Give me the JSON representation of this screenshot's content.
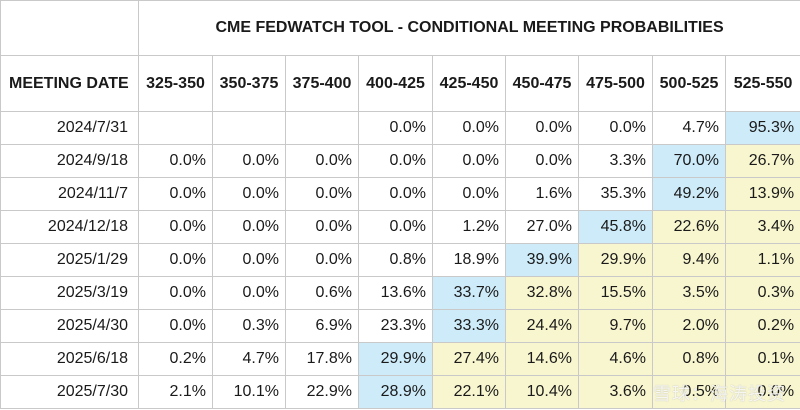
{
  "chart_data": {
    "type": "table",
    "title": "CME FEDWATCH TOOL - CONDITIONAL MEETING PROBABILITIES",
    "row_header_label": "MEETING DATE",
    "columns": [
      "325-350",
      "350-375",
      "375-400",
      "400-425",
      "425-450",
      "450-475",
      "475-500",
      "500-525",
      "525-550"
    ],
    "rows": [
      {
        "date": "2024/7/31",
        "values": [
          "",
          "",
          "",
          "0.0%",
          "0.0%",
          "0.0%",
          "0.0%",
          "4.7%",
          "95.3%"
        ]
      },
      {
        "date": "2024/9/18",
        "values": [
          "0.0%",
          "0.0%",
          "0.0%",
          "0.0%",
          "0.0%",
          "0.0%",
          "3.3%",
          "70.0%",
          "26.7%"
        ]
      },
      {
        "date": "2024/11/7",
        "values": [
          "0.0%",
          "0.0%",
          "0.0%",
          "0.0%",
          "0.0%",
          "1.6%",
          "35.3%",
          "49.2%",
          "13.9%"
        ]
      },
      {
        "date": "2024/12/18",
        "values": [
          "0.0%",
          "0.0%",
          "0.0%",
          "0.0%",
          "1.2%",
          "27.0%",
          "45.8%",
          "22.6%",
          "3.4%"
        ]
      },
      {
        "date": "2025/1/29",
        "values": [
          "0.0%",
          "0.0%",
          "0.0%",
          "0.8%",
          "18.9%",
          "39.9%",
          "29.9%",
          "9.4%",
          "1.1%"
        ]
      },
      {
        "date": "2025/3/19",
        "values": [
          "0.0%",
          "0.0%",
          "0.6%",
          "13.6%",
          "33.7%",
          "32.8%",
          "15.5%",
          "3.5%",
          "0.3%"
        ]
      },
      {
        "date": "2025/4/30",
        "values": [
          "0.0%",
          "0.3%",
          "6.9%",
          "23.3%",
          "33.3%",
          "24.4%",
          "9.7%",
          "2.0%",
          "0.2%"
        ]
      },
      {
        "date": "2025/6/18",
        "values": [
          "0.2%",
          "4.7%",
          "17.8%",
          "29.9%",
          "27.4%",
          "14.6%",
          "4.6%",
          "0.8%",
          "0.1%"
        ]
      },
      {
        "date": "2025/7/30",
        "values": [
          "2.1%",
          "10.1%",
          "22.9%",
          "28.9%",
          "22.1%",
          "10.4%",
          "3.6%",
          "0.5%",
          "0.0%"
        ]
      }
    ],
    "highlight_colors": {
      "max": "#cdebf9",
      "right_of_max": "#f8f6cf"
    }
  },
  "watermark": "雪球：海涛投资"
}
